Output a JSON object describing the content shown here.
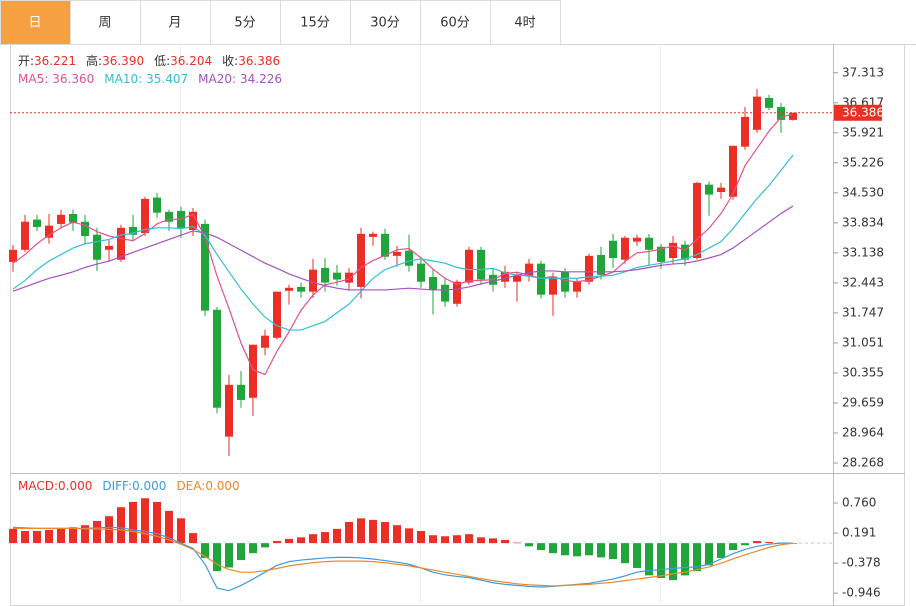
{
  "tabs": [
    "日",
    "周",
    "月",
    "5分",
    "15分",
    "30分",
    "60分",
    "4时"
  ],
  "active_tab": 0,
  "chart_data": [
    {
      "type": "candlestick",
      "ohlc_labels": [
        {
          "label": "开:",
          "value": "36.221"
        },
        {
          "label": "高:",
          "value": "36.390"
        },
        {
          "label": "低:",
          "value": "36.204"
        },
        {
          "label": "收:",
          "value": "36.386"
        }
      ],
      "up_color": "#ec2e24",
      "down_color": "#1fa53a",
      "open": [
        32.93,
        33.21,
        33.91,
        33.49,
        33.81,
        34.04,
        33.86,
        33.56,
        33.21,
        32.98,
        33.74,
        33.6,
        34.42,
        34.09,
        34.11,
        33.67,
        33.81,
        31.82,
        28.88,
        30.08,
        29.78,
        30.94,
        31.17,
        32.26,
        32.35,
        32.24,
        32.79,
        32.68,
        32.45,
        32.35,
        33.51,
        33.58,
        33.07,
        33.19,
        32.89,
        32.58,
        32.4,
        31.96,
        32.45,
        33.21,
        32.63,
        32.47,
        32.47,
        32.61,
        32.89,
        32.17,
        32.7,
        32.24,
        32.47,
        33.09,
        33.42,
        32.98,
        33.4,
        33.49,
        33.28,
        33.02,
        33.33,
        33.02,
        34.72,
        34.55,
        34.44,
        35.6,
        35.99,
        36.73,
        36.52,
        36.221
      ],
      "high": [
        33.32,
        34.02,
        34.02,
        34.04,
        34.14,
        34.14,
        34.02,
        33.72,
        33.44,
        33.79,
        34.02,
        34.44,
        34.53,
        34.14,
        34.21,
        34.18,
        33.91,
        31.89,
        30.31,
        30.4,
        31.01,
        31.36,
        32.24,
        32.4,
        32.45,
        33.0,
        33.02,
        32.86,
        32.79,
        33.72,
        33.63,
        33.7,
        33.3,
        33.56,
        33.05,
        32.75,
        32.54,
        32.52,
        33.28,
        33.28,
        32.79,
        32.84,
        32.68,
        33.0,
        32.96,
        32.68,
        32.79,
        32.54,
        33.12,
        33.28,
        33.58,
        33.53,
        33.56,
        33.58,
        33.35,
        33.53,
        33.42,
        34.79,
        34.79,
        34.76,
        35.62,
        36.52,
        36.94,
        36.8,
        36.61,
        36.39
      ],
      "low": [
        32.7,
        33.16,
        33.65,
        33.35,
        33.72,
        33.65,
        33.35,
        32.72,
        32.93,
        32.93,
        33.44,
        33.53,
        33.95,
        33.65,
        33.49,
        33.53,
        31.68,
        29.42,
        28.43,
        29.55,
        29.36,
        30.77,
        31.13,
        31.94,
        32.1,
        32.1,
        32.24,
        32.38,
        32.26,
        32.08,
        33.3,
        32.98,
        32.82,
        32.7,
        32.33,
        31.71,
        31.89,
        31.89,
        32.4,
        32.4,
        32.24,
        32.33,
        32.01,
        32.47,
        32.08,
        31.68,
        32.1,
        32.1,
        32.4,
        32.52,
        32.79,
        32.89,
        33.3,
        32.84,
        32.77,
        32.89,
        32.84,
        32.98,
        34.0,
        34.39,
        34.37,
        35.53,
        35.92,
        36.45,
        35.92,
        36.204
      ],
      "close": [
        33.21,
        33.86,
        33.74,
        33.77,
        34.02,
        33.84,
        33.53,
        32.98,
        33.3,
        33.72,
        33.56,
        34.39,
        34.07,
        33.86,
        33.72,
        34.09,
        31.8,
        29.55,
        30.08,
        29.73,
        31.01,
        31.22,
        32.24,
        32.33,
        32.24,
        32.75,
        32.45,
        32.52,
        32.68,
        33.58,
        33.58,
        33.05,
        33.16,
        32.84,
        32.47,
        32.28,
        32.01,
        32.47,
        33.21,
        32.52,
        32.4,
        32.7,
        32.61,
        32.89,
        32.17,
        32.59,
        32.24,
        32.47,
        33.07,
        32.63,
        33.02,
        33.49,
        33.49,
        33.21,
        32.93,
        33.37,
        32.98,
        34.76,
        34.49,
        34.65,
        35.62,
        36.29,
        36.76,
        36.5,
        36.22,
        36.386
      ],
      "series": [
        {
          "name": "MA5:",
          "last_label": "36.360",
          "color": "#e8508a",
          "values": [
            32.9,
            33.1,
            33.35,
            33.55,
            33.72,
            33.85,
            33.78,
            33.63,
            33.53,
            33.47,
            33.42,
            33.59,
            33.81,
            33.92,
            33.92,
            34.03,
            33.51,
            32.6,
            31.85,
            31.05,
            30.43,
            30.32,
            30.86,
            31.31,
            31.81,
            32.16,
            32.4,
            32.46,
            32.53,
            32.8,
            32.96,
            33.08,
            33.21,
            33.24,
            33.02,
            32.76,
            32.55,
            32.41,
            32.49,
            32.5,
            32.52,
            32.66,
            32.69,
            32.62,
            32.55,
            32.59,
            32.5,
            32.47,
            32.51,
            32.6,
            32.69,
            32.94,
            33.14,
            33.17,
            33.23,
            33.3,
            33.2,
            33.45,
            33.71,
            34.05,
            34.5,
            35.16,
            35.56,
            35.96,
            36.28,
            36.36
          ]
        },
        {
          "name": "MA10:",
          "last_label": "35.407",
          "color": "#33bfd4",
          "values": [
            32.3,
            32.5,
            32.75,
            32.95,
            33.1,
            33.25,
            33.35,
            33.4,
            33.45,
            33.55,
            33.6,
            33.68,
            33.72,
            33.72,
            33.7,
            33.75,
            33.55,
            33.1,
            32.7,
            32.3,
            31.95,
            31.65,
            31.45,
            31.35,
            31.35,
            31.45,
            31.55,
            31.75,
            31.95,
            32.25,
            32.55,
            32.75,
            32.85,
            32.95,
            33.0,
            32.95,
            32.9,
            32.8,
            32.75,
            32.75,
            32.78,
            32.68,
            32.62,
            32.6,
            32.55,
            32.55,
            32.55,
            32.55,
            32.58,
            32.6,
            32.62,
            32.7,
            32.8,
            32.85,
            32.9,
            32.95,
            33.0,
            33.1,
            33.25,
            33.4,
            33.7,
            34.05,
            34.4,
            34.7,
            35.05,
            35.407
          ]
        },
        {
          "name": "MA20:",
          "last_label": "34.226",
          "color": "#a552c2",
          "values": [
            32.25,
            32.35,
            32.45,
            32.55,
            32.62,
            32.7,
            32.8,
            32.88,
            32.95,
            33.05,
            33.15,
            33.25,
            33.35,
            33.45,
            33.55,
            33.65,
            33.6,
            33.5,
            33.35,
            33.2,
            33.05,
            32.9,
            32.78,
            32.65,
            32.55,
            32.45,
            32.38,
            32.32,
            32.28,
            32.28,
            32.28,
            32.28,
            32.3,
            32.32,
            32.3,
            32.28,
            32.28,
            32.3,
            32.35,
            32.42,
            32.48,
            32.55,
            32.62,
            32.68,
            32.72,
            32.72,
            32.7,
            32.7,
            32.7,
            32.7,
            32.7,
            32.72,
            32.75,
            32.8,
            32.85,
            32.88,
            32.9,
            32.95,
            33.02,
            33.1,
            33.25,
            33.45,
            33.65,
            33.85,
            34.05,
            34.226
          ]
        }
      ],
      "last_price": 36.386,
      "ylim": [
        28.06,
        37.98
      ],
      "yticks": [
        37.313,
        36.617,
        35.921,
        35.226,
        {
          "value": 34.53,
          "label": "34.530"
        },
        33.834,
        33.138,
        32.443,
        31.747,
        31.051,
        30.355,
        29.659,
        28.964,
        28.268
      ]
    },
    {
      "type": "macd",
      "up_color": "#ec2e24",
      "down_color": "#1fa53a",
      "histogram": {
        "name": "MACD:",
        "last_label": "0.000",
        "values": [
          0.27,
          0.23,
          0.23,
          0.25,
          0.27,
          0.3,
          0.34,
          0.42,
          0.51,
          0.68,
          0.78,
          0.85,
          0.78,
          0.61,
          0.47,
          0.19,
          -0.28,
          -0.53,
          -0.46,
          -0.32,
          -0.19,
          -0.08,
          0.04,
          0.08,
          0.11,
          0.17,
          0.21,
          0.27,
          0.4,
          0.47,
          0.44,
          0.4,
          0.34,
          0.28,
          0.23,
          0.15,
          0.13,
          0.15,
          0.17,
          0.11,
          0.09,
          0.06,
          0.01,
          -0.06,
          -0.13,
          -0.19,
          -0.23,
          -0.25,
          -0.23,
          -0.27,
          -0.3,
          -0.38,
          -0.47,
          -0.61,
          -0.66,
          -0.7,
          -0.61,
          -0.53,
          -0.42,
          -0.28,
          -0.13,
          -0.04,
          0.04,
          0.02,
          0.01,
          0
        ]
      },
      "series": [
        {
          "name": "DIFF:",
          "last_label": "0.000",
          "color": "#3d9be0",
          "values": [
            0.3,
            0.29,
            0.28,
            0.28,
            0.28,
            0.28,
            0.28,
            0.29,
            0.3,
            0.29,
            0.25,
            0.22,
            0.18,
            0.1,
            0.0,
            -0.1,
            -0.4,
            -0.85,
            -0.9,
            -0.8,
            -0.68,
            -0.55,
            -0.42,
            -0.35,
            -0.32,
            -0.3,
            -0.28,
            -0.27,
            -0.27,
            -0.28,
            -0.3,
            -0.33,
            -0.36,
            -0.4,
            -0.47,
            -0.55,
            -0.6,
            -0.63,
            -0.65,
            -0.7,
            -0.75,
            -0.78,
            -0.8,
            -0.82,
            -0.83,
            -0.82,
            -0.8,
            -0.78,
            -0.76,
            -0.72,
            -0.68,
            -0.62,
            -0.55,
            -0.52,
            -0.5,
            -0.48,
            -0.46,
            -0.45,
            -0.4,
            -0.3,
            -0.2,
            -0.12,
            -0.06,
            -0.02,
            0.0,
            0.0
          ]
        },
        {
          "name": "DEA:",
          "last_label": "0.000",
          "color": "#f0872a",
          "values": [
            0.28,
            0.28,
            0.28,
            0.28,
            0.28,
            0.28,
            0.27,
            0.27,
            0.26,
            0.25,
            0.22,
            0.18,
            0.13,
            0.06,
            -0.02,
            -0.12,
            -0.25,
            -0.4,
            -0.5,
            -0.55,
            -0.55,
            -0.52,
            -0.48,
            -0.43,
            -0.4,
            -0.37,
            -0.35,
            -0.34,
            -0.34,
            -0.34,
            -0.35,
            -0.37,
            -0.4,
            -0.43,
            -0.47,
            -0.51,
            -0.55,
            -0.59,
            -0.63,
            -0.67,
            -0.71,
            -0.74,
            -0.77,
            -0.79,
            -0.8,
            -0.81,
            -0.8,
            -0.79,
            -0.78,
            -0.76,
            -0.74,
            -0.71,
            -0.68,
            -0.65,
            -0.62,
            -0.58,
            -0.55,
            -0.5,
            -0.45,
            -0.38,
            -0.3,
            -0.22,
            -0.15,
            -0.08,
            -0.03,
            0.0
          ]
        }
      ],
      "ylim": [
        -1.19,
        1.29
      ],
      "yticks": [
        {
          "value": 0.76,
          "label": "0.760"
        },
        0.191,
        -0.378,
        -0.946
      ]
    }
  ]
}
